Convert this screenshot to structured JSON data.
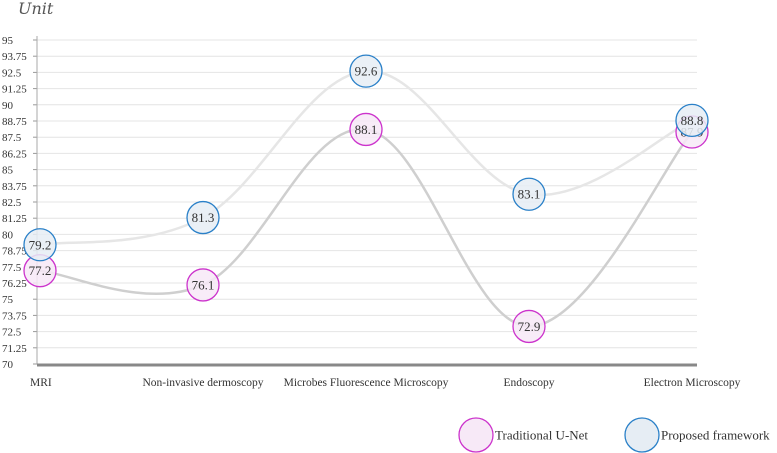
{
  "chart_data": {
    "type": "line",
    "ylabel": "Unit",
    "categories": [
      "MRI",
      "Non-invasive dermoscopy",
      "Microbes Fluorescence Microscopy",
      "Endoscopy",
      "Electron Microscopy"
    ],
    "ylim": [
      70,
      95
    ],
    "yticks": [
      "70",
      "71.25",
      "72.5",
      "73.75",
      "75",
      "76.25",
      "77.5",
      "78.75",
      "80",
      "81.25",
      "82.5",
      "83.75",
      "85",
      "86.25",
      "87.5",
      "88.75",
      "90",
      "91.25",
      "92.5",
      "93.75",
      "95"
    ],
    "grid": true,
    "legend_position": "bottom-right",
    "series": [
      {
        "name": "Traditional U-Net",
        "values": [
          77.2,
          76.1,
          88.1,
          72.9,
          87.9
        ],
        "labels": [
          "77.2",
          "76.1",
          "88.1",
          "72.9",
          "87.9"
        ],
        "color": "#cc33cc",
        "fill": "#f7e9f7",
        "line_color": "#cfcfcf"
      },
      {
        "name": "Proposed framework",
        "values": [
          79.2,
          81.3,
          92.6,
          83.1,
          88.8
        ],
        "labels": [
          "79.2",
          "81.3",
          "92.6",
          "83.1",
          "88.8"
        ],
        "color": "#2a80c8",
        "fill": "#e6edf4",
        "line_color": "#e6e6e6"
      }
    ]
  }
}
